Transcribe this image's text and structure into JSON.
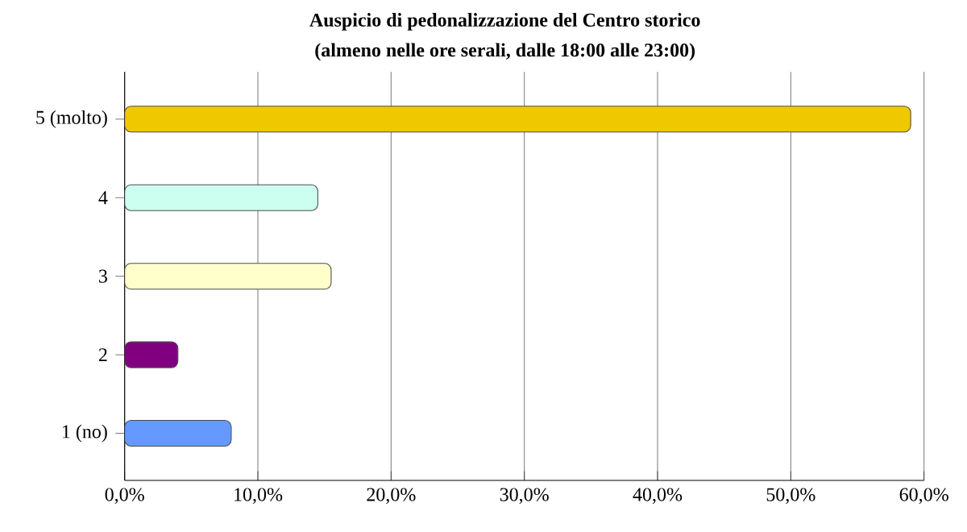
{
  "chart_data": {
    "type": "bar",
    "orientation": "horizontal",
    "title": "Auspicio di pedonalizzazione del Centro storico",
    "subtitle": "(almeno nelle ore serali, dalle 18:00 alle 23:00)",
    "categories": [
      "5 (molto)",
      "4",
      "3",
      "2",
      "1 (no)"
    ],
    "values": [
      59.0,
      14.5,
      15.5,
      4.0,
      8.0
    ],
    "colors": [
      "#f0c800",
      "#ccfff0",
      "#ffffcc",
      "#800080",
      "#6699ff"
    ],
    "xlim": [
      0,
      60
    ],
    "xticks": [
      {
        "value": 0,
        "label": "0,0%"
      },
      {
        "value": 10,
        "label": "10,0%"
      },
      {
        "value": 20,
        "label": "20,0%"
      },
      {
        "value": 30,
        "label": "30,0%"
      },
      {
        "value": 40,
        "label": "40,0%"
      },
      {
        "value": 50,
        "label": "50,0%"
      },
      {
        "value": 60,
        "label": "60,0%"
      }
    ],
    "grid": "x"
  }
}
